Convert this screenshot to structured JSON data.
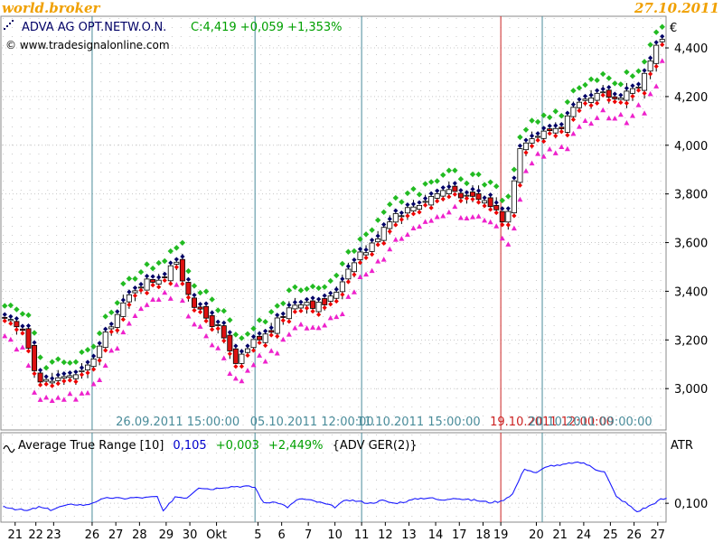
{
  "header": {
    "brand": "world.broker",
    "date": "27.10.2011",
    "instrument": "ADVA AG OPT.NETW.O.N.",
    "quote": "C:4,419 +0,059 +1,353%",
    "source": "© www.tradesignalonline.com",
    "currency": "€"
  },
  "colors": {
    "up_body": "#ffffff",
    "down_body": "#dd1111",
    "band_upper_marker": "#22bb22",
    "band_lower_marker": "#ee22cc",
    "marker_navy": "#000066",
    "marker_red": "#ee0000",
    "atr_line": "#1a1aff",
    "vline": "#4a8c9a",
    "vline_highlight": "#cc2222",
    "quote_green": "#00a000",
    "atr_value_blue": "#0000cc"
  },
  "chart_data": [
    {
      "type": "candlestick",
      "title": "ADVA AG OPT.NETW.O.N.",
      "ylabel": "€",
      "ylim": [
        2.83,
        4.53
      ],
      "yticks": [
        "3,000",
        "3,200",
        "3,400",
        "3,600",
        "3,800",
        "4,000",
        "4,200",
        "4,400"
      ],
      "grid": true,
      "date_labels": [
        {
          "text": "26.09.2011 15:00:00",
          "at": 38,
          "color": "#4a8c9a"
        },
        {
          "text": "05.10.2011 12:00:00",
          "at": 87,
          "color": "#4a8c9a"
        },
        {
          "text": "11.10.2011 15:00:00",
          "at": 123,
          "color": "#4a8c9a"
        },
        {
          "text": "19.10.2011 12:00:00",
          "at": 168,
          "color": "#cc2222"
        },
        {
          "text": "20.10.2011 09:00:00",
          "at": 181,
          "color": "#4a8c9a"
        }
      ],
      "vlines": [
        {
          "at": 30,
          "color": "#4a8c9a"
        },
        {
          "at": 85,
          "color": "#4a8c9a"
        },
        {
          "at": 121,
          "color": "#4a8c9a"
        },
        {
          "at": 168,
          "color": "#cc2222"
        },
        {
          "at": 182,
          "color": "#4a8c9a"
        }
      ],
      "x_axis_labels": [
        {
          "text": "21",
          "at": 4
        },
        {
          "text": "22",
          "at": 11
        },
        {
          "text": "23",
          "at": 17
        },
        {
          "text": "26",
          "at": 30
        },
        {
          "text": "27",
          "at": 38
        },
        {
          "text": "28",
          "at": 46
        },
        {
          "text": "29",
          "at": 55
        },
        {
          "text": "30",
          "at": 63
        },
        {
          "text": "Okt",
          "at": 72
        },
        {
          "text": "5",
          "at": 86
        },
        {
          "text": "6",
          "at": 94
        },
        {
          "text": "7",
          "at": 103
        },
        {
          "text": "10",
          "at": 112
        },
        {
          "text": "11",
          "at": 121
        },
        {
          "text": "12",
          "at": 129
        },
        {
          "text": "13",
          "at": 137
        },
        {
          "text": "14",
          "at": 146
        },
        {
          "text": "17",
          "at": 154
        },
        {
          "text": "18",
          "at": 162
        },
        {
          "text": "19",
          "at": 168
        },
        {
          "text": "20",
          "at": 180
        },
        {
          "text": "21",
          "at": 188
        },
        {
          "text": "24",
          "at": 196
        },
        {
          "text": "25",
          "at": 205
        },
        {
          "text": "26",
          "at": 213
        },
        {
          "text": "27",
          "at": 221
        }
      ],
      "waypoints": [
        [
          0,
          3.28
        ],
        [
          3,
          3.27
        ],
        [
          5,
          3.25
        ],
        [
          8,
          3.24
        ],
        [
          10,
          3.12
        ],
        [
          13,
          3.03
        ],
        [
          16,
          3.03
        ],
        [
          19,
          3.04
        ],
        [
          22,
          3.06
        ],
        [
          25,
          3.05
        ],
        [
          28,
          3.07
        ],
        [
          31,
          3.13
        ],
        [
          34,
          3.19
        ],
        [
          37,
          3.27
        ],
        [
          40,
          3.32
        ],
        [
          43,
          3.38
        ],
        [
          46,
          3.43
        ],
        [
          49,
          3.44
        ],
        [
          52,
          3.45
        ],
        [
          55,
          3.47
        ],
        [
          58,
          3.53
        ],
        [
          61,
          3.45
        ],
        [
          64,
          3.37
        ],
        [
          67,
          3.31
        ],
        [
          70,
          3.28
        ],
        [
          73,
          3.25
        ],
        [
          76,
          3.17
        ],
        [
          79,
          3.1
        ],
        [
          82,
          3.14
        ],
        [
          85,
          3.19
        ],
        [
          88,
          3.21
        ],
        [
          91,
          3.24
        ],
        [
          94,
          3.29
        ],
        [
          97,
          3.33
        ],
        [
          100,
          3.36
        ],
        [
          103,
          3.36
        ],
        [
          106,
          3.34
        ],
        [
          109,
          3.35
        ],
        [
          112,
          3.38
        ],
        [
          115,
          3.45
        ],
        [
          118,
          3.52
        ],
        [
          121,
          3.56
        ],
        [
          124,
          3.57
        ],
        [
          127,
          3.63
        ],
        [
          130,
          3.69
        ],
        [
          133,
          3.72
        ],
        [
          136,
          3.73
        ],
        [
          139,
          3.75
        ],
        [
          142,
          3.77
        ],
        [
          145,
          3.79
        ],
        [
          148,
          3.81
        ],
        [
          151,
          3.82
        ],
        [
          154,
          3.81
        ],
        [
          157,
          3.78
        ],
        [
          160,
          3.78
        ],
        [
          163,
          3.77
        ],
        [
          166,
          3.75
        ],
        [
          168,
          3.71
        ],
        [
          170,
          3.69
        ],
        [
          172,
          3.77
        ],
        [
          174,
          3.97
        ],
        [
          176,
          4.03
        ],
        [
          178,
          4.02
        ],
        [
          180,
          4.04
        ],
        [
          183,
          4.05
        ],
        [
          186,
          4.07
        ],
        [
          189,
          4.08
        ],
        [
          192,
          4.13
        ],
        [
          195,
          4.16
        ],
        [
          198,
          4.18
        ],
        [
          201,
          4.2
        ],
        [
          204,
          4.21
        ],
        [
          207,
          4.19
        ],
        [
          210,
          4.22
        ],
        [
          213,
          4.23
        ],
        [
          216,
          4.26
        ],
        [
          218,
          4.31
        ],
        [
          220,
          4.37
        ],
        [
          222,
          4.419
        ]
      ]
    },
    {
      "type": "line",
      "title": "Average True Range [10]",
      "value": "0,105",
      "change": "+0,003",
      "change_pct": "+2,449%",
      "extra": "{ADV GER(2)}",
      "ylabel": "ATR",
      "ylim": [
        0.08,
        0.175
      ],
      "yticks": [
        "0,100"
      ],
      "waypoints": [
        [
          0,
          0.097
        ],
        [
          4,
          0.094
        ],
        [
          8,
          0.092
        ],
        [
          12,
          0.096
        ],
        [
          16,
          0.093
        ],
        [
          20,
          0.097
        ],
        [
          24,
          0.099
        ],
        [
          28,
          0.098
        ],
        [
          32,
          0.103
        ],
        [
          36,
          0.106
        ],
        [
          40,
          0.105
        ],
        [
          44,
          0.106
        ],
        [
          48,
          0.106
        ],
        [
          52,
          0.107
        ],
        [
          54,
          0.091
        ],
        [
          58,
          0.107
        ],
        [
          62,
          0.106
        ],
        [
          66,
          0.117
        ],
        [
          70,
          0.115
        ],
        [
          74,
          0.117
        ],
        [
          78,
          0.118
        ],
        [
          82,
          0.118
        ],
        [
          85,
          0.117
        ],
        [
          88,
          0.1
        ],
        [
          92,
          0.102
        ],
        [
          96,
          0.096
        ],
        [
          100,
          0.105
        ],
        [
          104,
          0.103
        ],
        [
          108,
          0.1
        ],
        [
          112,
          0.096
        ],
        [
          116,
          0.104
        ],
        [
          120,
          0.102
        ],
        [
          124,
          0.1
        ],
        [
          128,
          0.103
        ],
        [
          132,
          0.1
        ],
        [
          136,
          0.102
        ],
        [
          140,
          0.105
        ],
        [
          144,
          0.106
        ],
        [
          148,
          0.103
        ],
        [
          152,
          0.106
        ],
        [
          156,
          0.104
        ],
        [
          160,
          0.103
        ],
        [
          164,
          0.101
        ],
        [
          168,
          0.102
        ],
        [
          172,
          0.11
        ],
        [
          176,
          0.137
        ],
        [
          180,
          0.132
        ],
        [
          184,
          0.14
        ],
        [
          188,
          0.14
        ],
        [
          192,
          0.143
        ],
        [
          196,
          0.143
        ],
        [
          200,
          0.136
        ],
        [
          203,
          0.134
        ],
        [
          207,
          0.107
        ],
        [
          210,
          0.101
        ],
        [
          214,
          0.091
        ],
        [
          218,
          0.097
        ],
        [
          222,
          0.104
        ],
        [
          224,
          0.105
        ]
      ]
    }
  ]
}
